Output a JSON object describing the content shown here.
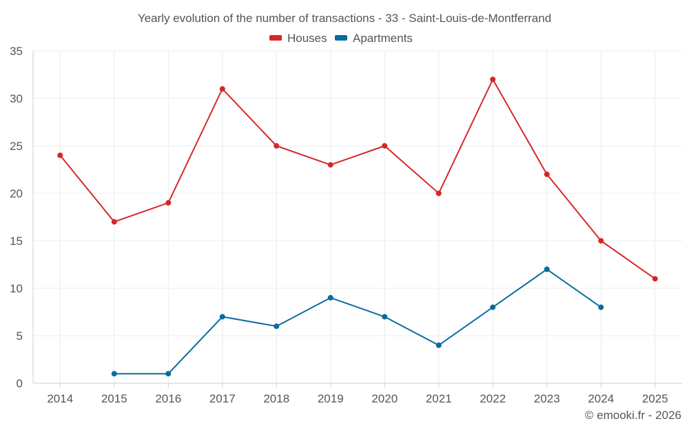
{
  "chart_data": {
    "type": "line",
    "title": "Yearly evolution of the number of transactions - 33 - Saint-Louis-de-Montferrand",
    "categories": [
      "2014",
      "2015",
      "2016",
      "2017",
      "2018",
      "2019",
      "2020",
      "2021",
      "2022",
      "2023",
      "2024",
      "2025"
    ],
    "ylim": [
      0,
      35
    ],
    "yticks": [
      0,
      5,
      10,
      15,
      20,
      25,
      30,
      35
    ],
    "grid": true,
    "legend_position": "top-center",
    "series": [
      {
        "name": "Houses",
        "color": "#d62728",
        "values": [
          24,
          17,
          19,
          31,
          25,
          23,
          25,
          20,
          32,
          22,
          15,
          11
        ]
      },
      {
        "name": "Apartments",
        "color": "#0a6ba1",
        "values": [
          null,
          1,
          1,
          7,
          6,
          9,
          7,
          4,
          8,
          12,
          8,
          null
        ]
      }
    ],
    "credit": "© emooki.fr - 2026"
  }
}
